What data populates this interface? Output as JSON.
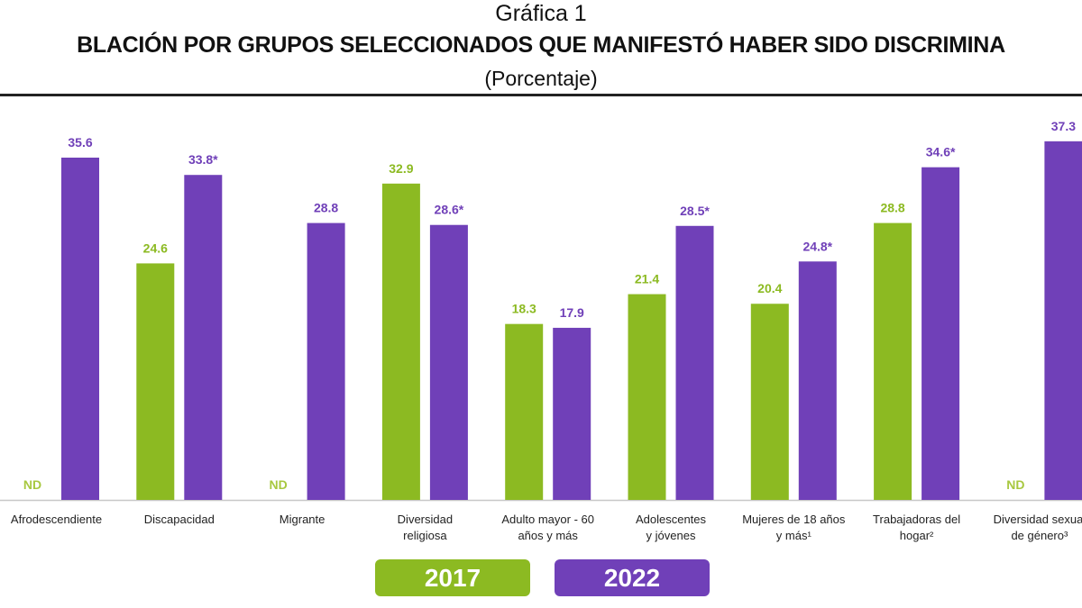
{
  "chart_data": {
    "type": "bar",
    "title": "Gráfica 1",
    "subtitle": "BLACIÓN POR GRUPOS SELECCIONADOS QUE MANIFESTÓ HABER SIDO DISCRIMINA",
    "unit": "(Porcentaje)",
    "categories": [
      [
        "Afrodescendiente"
      ],
      [
        "Discapacidad"
      ],
      [
        "Migrante"
      ],
      [
        "Diversidad",
        "religiosa"
      ],
      [
        "Adulto mayor - 60",
        "años y más"
      ],
      [
        "Adolescentes",
        "y jóvenes"
      ],
      [
        "Mujeres de 18 años",
        "y más¹"
      ],
      [
        "Trabajadoras del",
        "hogar²"
      ],
      [
        "Diversidad sexual",
        "de género³"
      ]
    ],
    "series": [
      {
        "name": "2017",
        "color": "#8cba22",
        "values": [
          null,
          24.6,
          null,
          32.9,
          18.3,
          21.4,
          20.4,
          28.8,
          null
        ],
        "labels": [
          "ND",
          "24.6",
          "ND",
          "32.9",
          "18.3",
          "21.4",
          "20.4",
          "28.8",
          "ND"
        ]
      },
      {
        "name": "2022",
        "color": "#7040b8",
        "values": [
          35.6,
          33.8,
          28.8,
          28.6,
          17.9,
          28.5,
          24.8,
          34.6,
          37.3
        ],
        "labels": [
          "35.6",
          "33.8*",
          "28.8",
          "28.6*",
          "17.9",
          "28.5*",
          "24.8*",
          "34.6*",
          "37.3"
        ]
      }
    ],
    "ylim": [
      0,
      38
    ],
    "grid": false,
    "legend_position": "bottom-center"
  }
}
